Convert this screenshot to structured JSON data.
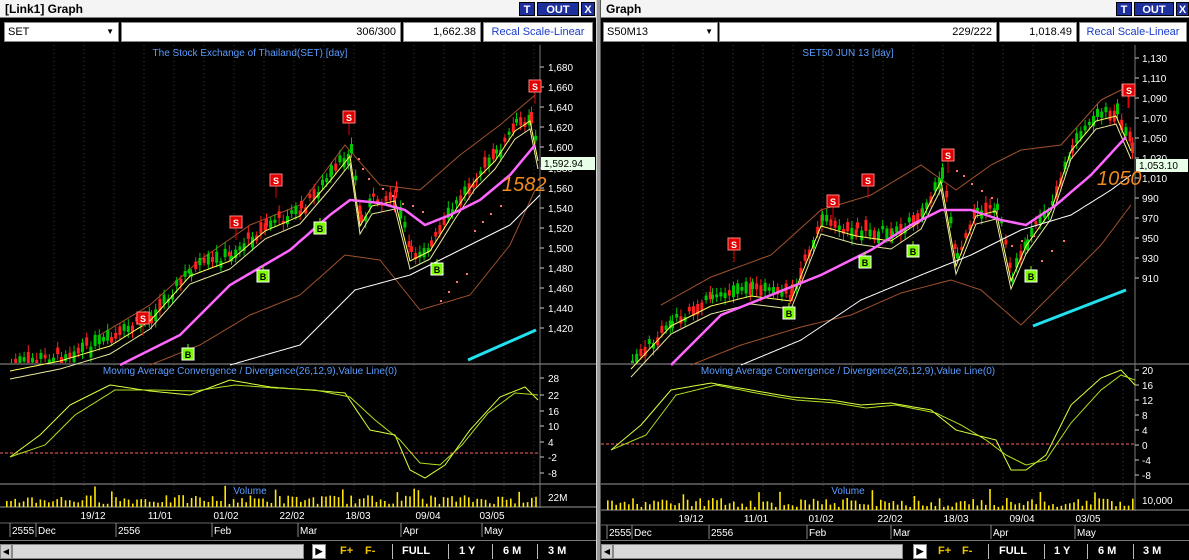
{
  "panels": [
    {
      "window_title": "[Link1] Graph",
      "title_buttons": [
        "T",
        "OUT",
        "X"
      ],
      "symbol": "SET",
      "count": "306/300",
      "price": "1,662.38",
      "recal_label": "Recal Scale-Linear",
      "chart_title": "The Stock Exchange of Thailand(SET) [day]",
      "price_axis_labels": [
        "1,680",
        "1,660",
        "1,640",
        "1,620",
        "1,600",
        "1,580",
        "1,560",
        "1,540",
        "1,520",
        "1,500",
        "1,480",
        "1,460",
        "1,440",
        "1,420"
      ],
      "last_price_label": "1,592.94",
      "annotation": "1582",
      "macd_title": "Moving Average Convergence / Divergence(26,12,9),Value Line(0)",
      "macd_axis_labels": [
        "28",
        "22",
        "16",
        "10",
        "4",
        "-2",
        "-8"
      ],
      "volume_title": "Volume",
      "volume_axis_label": "22M",
      "date_labels": [
        "19/12",
        "11/01",
        "01/02",
        "22/02",
        "18/03",
        "09/04",
        "03/05"
      ],
      "month_labels": [
        "2555",
        "Dec",
        "2556",
        "Feb",
        "Mar",
        "Apr",
        "May"
      ],
      "signals": [
        "S",
        "S",
        "S",
        "S",
        "B",
        "B",
        "B",
        "B",
        "S"
      ]
    },
    {
      "window_title": "Graph",
      "title_buttons": [
        "T",
        "OUT",
        "X"
      ],
      "symbol": "S50M13",
      "count": "229/222",
      "price": "1,018.49",
      "recal_label": "Recal Scale-Linear",
      "chart_title": "SET50 JUN 13   [day]",
      "price_axis_labels": [
        "1,130",
        "1,110",
        "1,090",
        "1,070",
        "1,050",
        "1,030",
        "1,010",
        "990",
        "970",
        "950",
        "930",
        "910"
      ],
      "last_price_label": "1,053.10",
      "annotation": "1050",
      "macd_title": "Moving Average Convergence / Divergence(26,12,9),Value Line(0)",
      "macd_axis_labels": [
        "20",
        "16",
        "12",
        "8",
        "4",
        "0",
        "-4",
        "-8"
      ],
      "volume_title": "Volume",
      "volume_axis_label": "10,000",
      "date_labels": [
        "19/12",
        "11/01",
        "01/02",
        "22/02",
        "18/03",
        "09/04",
        "03/05"
      ],
      "month_labels": [
        "2555",
        "Dec",
        "2556",
        "Feb",
        "Mar",
        "Apr",
        "May"
      ],
      "signals": [
        "S",
        "S",
        "S",
        "S",
        "S",
        "B",
        "B",
        "B",
        "B",
        "S"
      ]
    }
  ],
  "bottom_bar": {
    "f_plus": "F+",
    "f_minus": "F-",
    "periods": [
      "FULL",
      "1 Y",
      "6 M",
      "3 M"
    ]
  },
  "colors": {
    "up_candle": "#00c800",
    "down_candle": "#ff2020",
    "ma_pink": "#ff66ff",
    "ma_yellow": "#ffff60",
    "ma_white": "#ffffff",
    "bollinger": "#a0522d",
    "trend_cyan": "#22e0ee",
    "annotation": "#f08a1e",
    "title_blue": "#5a9cff",
    "sell_red": "#e00000",
    "buy_green": "#7cfc00"
  }
}
